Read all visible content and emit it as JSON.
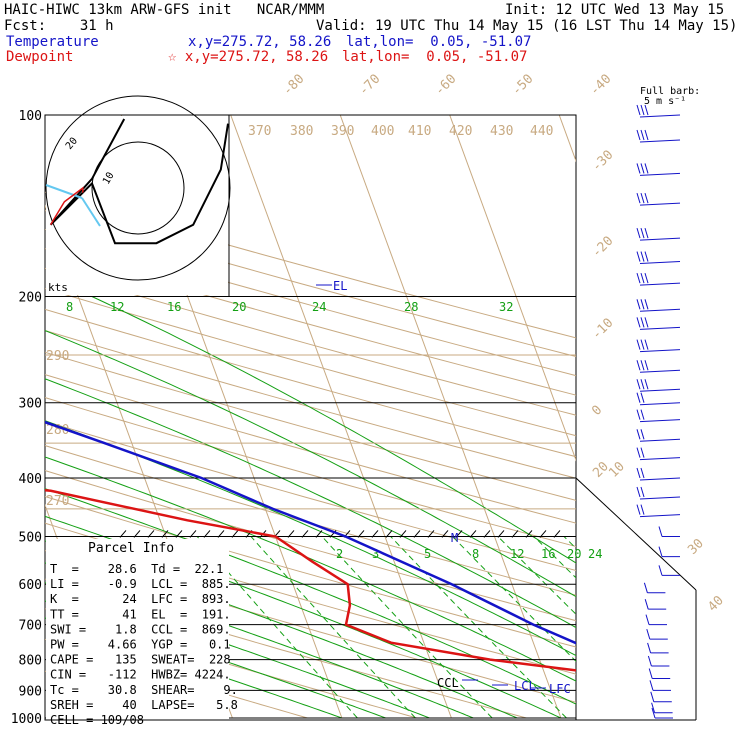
{
  "header": {
    "line1_left": "HAIC-HIWC 13km ARW-GFS init   NCAR/MMM",
    "line1_right": "Init: 12 UTC Wed 13 May 15",
    "line2_left": "Fcst:    31 h",
    "line2_right": "Valid: 19 UTC Thu 14 May 15 (16 LST Thu 14 May 15)",
    "temp_label": "Temperature",
    "temp_coords": "x,y=275.72, 58.26",
    "temp_latlon": "lat,lon=  0.05, -51.07",
    "dew_label": "Dewpoint",
    "dew_coords": "☆ x,y=275.72, 58.26",
    "dew_latlon": "lat,lon=  0.05, -51.07",
    "barb_key_1": "Full barb:",
    "barb_key_2": "5 m s⁻¹",
    "hodo_units": "kts",
    "hodo_ring_inner": "10",
    "hodo_ring_outer": "20"
  },
  "colors": {
    "temperature": "#1414c8",
    "dewpoint": "#dc1414",
    "isotherm": "#c8aa82",
    "mixing_ratio": "#14a014",
    "wind": "#1414c8"
  },
  "chart_data": {
    "type": "line",
    "title": "Skew-T log-P sounding",
    "ylabel_unit": "hPa",
    "pressure_levels": [
      100,
      200,
      300,
      400,
      500,
      600,
      700,
      800,
      900,
      1000
    ],
    "skewed_isotherm_labels": [
      "-80",
      "-70",
      "-60",
      "-50",
      "-40",
      "-30",
      "-20",
      "-10",
      "0",
      "10",
      "20",
      "30",
      "40"
    ],
    "theta_labels": [
      "370",
      "380",
      "390",
      "400",
      "410",
      "420",
      "430",
      "440",
      "290",
      "280",
      "270"
    ],
    "mixing_ratio_labels": [
      "8",
      "12",
      "16",
      "20",
      "24",
      "28",
      "32",
      "2",
      "3",
      "5",
      "8",
      "12",
      "16",
      "20",
      "24"
    ],
    "series": [
      {
        "name": "Temperature",
        "p": [
          1000,
          950,
          900,
          850,
          800,
          700,
          600,
          500,
          450,
          400,
          350,
          300,
          250,
          200,
          150,
          100
        ],
        "t": [
          29.3,
          24.8,
          21.2,
          19.0,
          16.8,
          10.6,
          4.5,
          -3.6,
          -9.3,
          -14.8,
          -22.5,
          -31.6,
          -41.3,
          -53.3,
          -67.8,
          -79.0
        ]
      },
      {
        "name": "Dewpoint",
        "p": [
          1000,
          950,
          900,
          850,
          800,
          750,
          700,
          650,
          600,
          550,
          500,
          470,
          420,
          400,
          370,
          330,
          300,
          250,
          220,
          200,
          180,
          150,
          120,
          100
        ],
        "t": [
          22.2,
          21.5,
          19.5,
          16.5,
          5.5,
          -3.0,
          -6.5,
          -5.5,
          -5.0,
          -7.5,
          -10.0,
          -17.5,
          -29.0,
          -42.0,
          -43.5,
          -51.0,
          -59.0,
          -69.5,
          -70.5,
          -69.5,
          -73.0,
          -79.0,
          -87.0,
          -91.0
        ]
      }
    ],
    "annotations": [
      "EL",
      "M",
      "CCL",
      "LCL",
      "LFC"
    ],
    "parcel_info": {
      "title": "Parcel Info",
      "rows": [
        "T  =    28.6  Td =  22.1",
        "LI =    -0.9  LCL =  885.",
        "K  =      24  LFC =  893.",
        "TT =      41  EL  =  191.",
        "SWI =    1.8  CCL =  869.",
        "PW =    4.66  YGP =   0.1",
        "CAPE =   135  SWEAT=  228",
        "CIN =   -112  HWBZ= 4224.",
        "Tc =    30.8  SHEAR=    9.",
        "SREH =    40  LAPSE=   5.8",
        "CELL = 109/08"
      ]
    },
    "wind_profile_pressures": [
      100,
      110,
      125,
      140,
      160,
      175,
      190,
      210,
      225,
      245,
      265,
      285,
      300,
      320,
      345,
      370,
      400,
      430,
      460,
      500,
      540,
      580,
      620,
      660,
      700,
      740,
      780,
      820,
      860,
      900,
      940,
      980,
      1000
    ],
    "hodograph_points": [
      [
        -3,
        15
      ],
      [
        -10,
        2
      ],
      [
        -19,
        -8
      ],
      [
        -16,
        -5
      ],
      [
        -10,
        1
      ],
      [
        -5,
        -12
      ],
      [
        4,
        -12
      ],
      [
        12,
        -8
      ],
      [
        18,
        4
      ],
      [
        24,
        14
      ]
    ],
    "hodograph_points_low": [
      [
        -19,
        -8
      ],
      [
        -16,
        -3
      ],
      [
        -12,
        0
      ],
      [
        -12,
        -1
      ]
    ]
  }
}
